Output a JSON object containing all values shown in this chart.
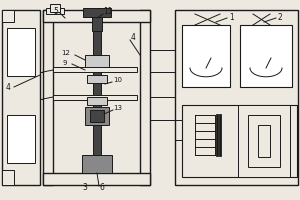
{
  "bg_color": "#ede9e0",
  "line_color": "#1a1a1a",
  "fill_gray": "#888888",
  "fill_dark": "#444444",
  "fill_light": "#cccccc",
  "white": "#ffffff"
}
